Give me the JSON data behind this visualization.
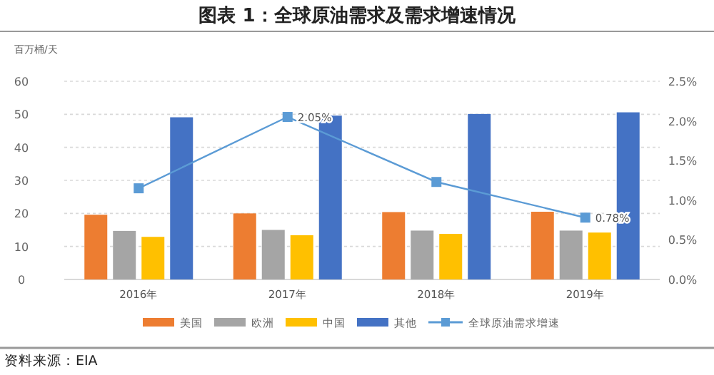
{
  "chart_data": {
    "type": "bar",
    "title": "图表 1：全球原油需求及需求增速情况",
    "ylabel": "百万桶/天",
    "categories": [
      "2016年",
      "2017年",
      "2018年",
      "2019年"
    ],
    "series": [
      {
        "name": "美国",
        "color": "#ed7d31",
        "values": [
          19.6,
          20.0,
          20.4,
          20.5
        ]
      },
      {
        "name": "欧洲",
        "color": "#a5a5a5",
        "values": [
          14.7,
          15.0,
          14.8,
          14.8
        ]
      },
      {
        "name": "中国",
        "color": "#ffc000",
        "values": [
          12.9,
          13.4,
          13.8,
          14.2
        ]
      },
      {
        "name": "其他",
        "color": "#4472c4",
        "values": [
          49.1,
          49.6,
          50.1,
          50.6
        ]
      },
      {
        "name": "全球原油需求增速",
        "type": "line",
        "axis": "y2",
        "color": "#5b9bd5",
        "marker": "square",
        "values": [
          1.15,
          2.05,
          1.23,
          0.78
        ],
        "value_labels": [
          null,
          "2.05%",
          null,
          "0.78%"
        ]
      }
    ],
    "ylim": [
      0,
      60
    ],
    "yticks": [
      0,
      10,
      20,
      30,
      40,
      50,
      60
    ],
    "y2lim": [
      0,
      2.5
    ],
    "y2ticks": [
      {
        "value": 0,
        "label": "0.0%"
      },
      {
        "value": 0.5,
        "label": "0.5%"
      },
      {
        "value": 1,
        "label": "1.0%"
      },
      {
        "value": 1.5,
        "label": "1.5%"
      },
      {
        "value": 2,
        "label": "2.0%"
      },
      {
        "value": 2.5,
        "label": "2.5%"
      }
    ],
    "grid": "y",
    "legend": "bottom",
    "annotations": [
      "资料来源：EIA"
    ]
  }
}
